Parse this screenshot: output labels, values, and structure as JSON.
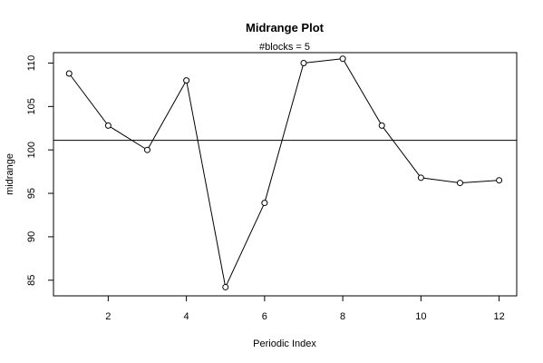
{
  "chart_data": {
    "type": "line",
    "title": "Midrange Plot",
    "subtitle": "#blocks =  5",
    "xlabel": "Periodic Index",
    "ylabel": "midrange",
    "xlim": [
      0.6,
      12.45
    ],
    "ylim": [
      83.2,
      111.2
    ],
    "x_ticks": [
      2,
      4,
      6,
      8,
      10,
      12
    ],
    "y_ticks": [
      85,
      90,
      95,
      100,
      105,
      110
    ],
    "reference_line": 101.1,
    "grid": false,
    "series": [
      {
        "x": [
          1,
          2,
          3,
          4,
          5,
          6,
          7,
          8,
          9,
          10,
          11,
          12
        ],
        "values": [
          108.8,
          102.8,
          100.0,
          108.0,
          84.2,
          93.9,
          110.0,
          110.5,
          102.8,
          96.8,
          96.2,
          96.5
        ],
        "marker": "open-circle",
        "color": "#000000"
      }
    ]
  }
}
